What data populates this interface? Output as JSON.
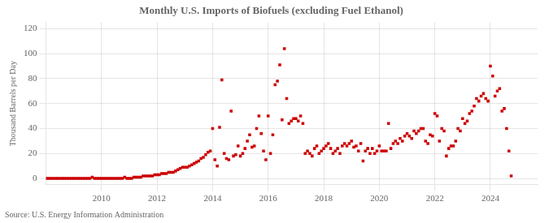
{
  "chart_data": {
    "type": "scatter",
    "title": "Monthly U.S. Imports of Biofuels (excluding Fuel Ethanol)",
    "y_label": "Thousand Barrels per Day",
    "annotation": "Source: U.S. Energy Information Administration",
    "color": "#cc0000",
    "marker": "square",
    "grid": true,
    "xlim": [
      2008.0,
      2025.7
    ],
    "xticks": [
      2010,
      2012,
      2014,
      2016,
      2018,
      2020,
      2022,
      2024
    ],
    "ylim": [
      -5,
      125
    ],
    "yticks": [
      0,
      20,
      40,
      60,
      80,
      100,
      120
    ],
    "x": [
      2008,
      2008.0833333333333,
      2008.1666666666667,
      2008.25,
      2008.3333333333333,
      2008.4166666666667,
      2008.5,
      2008.5833333333333,
      2008.6666666666667,
      2008.75,
      2008.8333333333333,
      2008.9166666666667,
      2009,
      2009.0833333333333,
      2009.1666666666667,
      2009.25,
      2009.3333333333333,
      2009.4166666666667,
      2009.5,
      2009.5833333333333,
      2009.6666666666667,
      2009.75,
      2009.8333333333333,
      2009.9166666666667,
      2010,
      2010.0833333333333,
      2010.1666666666667,
      2010.25,
      2010.3333333333333,
      2010.4166666666667,
      2010.5,
      2010.5833333333333,
      2010.6666666666667,
      2010.75,
      2010.8333333333333,
      2010.9166666666667,
      2011,
      2011.0833333333333,
      2011.1666666666667,
      2011.25,
      2011.3333333333333,
      2011.4166666666667,
      2011.5,
      2011.5833333333333,
      2011.6666666666667,
      2011.75,
      2011.8333333333333,
      2011.9166666666667,
      2012,
      2012.0833333333333,
      2012.1666666666667,
      2012.25,
      2012.3333333333333,
      2012.4166666666667,
      2012.5,
      2012.5833333333333,
      2012.6666666666667,
      2012.75,
      2012.8333333333333,
      2012.9166666666667,
      2013,
      2013.0833333333333,
      2013.1666666666667,
      2013.25,
      2013.3333333333333,
      2013.4166666666667,
      2013.5,
      2013.5833333333333,
      2013.6666666666667,
      2013.75,
      2013.8333333333333,
      2013.9166666666667,
      2014,
      2014.0833333333333,
      2014.1666666666667,
      2014.25,
      2014.3333333333333,
      2014.4166666666667,
      2014.5,
      2014.5833333333333,
      2014.6666666666667,
      2014.75,
      2014.8333333333333,
      2014.9166666666667,
      2015,
      2015.0833333333333,
      2015.1666666666667,
      2015.25,
      2015.3333333333333,
      2015.4166666666667,
      2015.5,
      2015.5833333333333,
      2015.6666666666667,
      2015.75,
      2015.8333333333333,
      2015.9166666666667,
      2016,
      2016.0833333333333,
      2016.1666666666667,
      2016.25,
      2016.3333333333333,
      2016.4166666666667,
      2016.5,
      2016.5833333333333,
      2016.6666666666667,
      2016.75,
      2016.8333333333333,
      2016.9166666666667,
      2017,
      2017.0833333333333,
      2017.1666666666667,
      2017.25,
      2017.3333333333333,
      2017.4166666666667,
      2017.5,
      2017.5833333333333,
      2017.6666666666667,
      2017.75,
      2017.8333333333333,
      2017.9166666666667,
      2018,
      2018.0833333333333,
      2018.1666666666667,
      2018.25,
      2018.3333333333333,
      2018.4166666666667,
      2018.5,
      2018.5833333333333,
      2018.6666666666667,
      2018.75,
      2018.8333333333333,
      2018.9166666666667,
      2019,
      2019.0833333333333,
      2019.1666666666667,
      2019.25,
      2019.3333333333333,
      2019.4166666666667,
      2019.5,
      2019.5833333333333,
      2019.6666666666667,
      2019.75,
      2019.8333333333333,
      2019.9166666666667,
      2020,
      2020.0833333333333,
      2020.1666666666667,
      2020.25,
      2020.3333333333333,
      2020.4166666666667,
      2020.5,
      2020.5833333333333,
      2020.6666666666667,
      2020.75,
      2020.8333333333333,
      2020.9166666666667,
      2021,
      2021.0833333333333,
      2021.1666666666667,
      2021.25,
      2021.3333333333333,
      2021.4166666666667,
      2021.5,
      2021.5833333333333,
      2021.6666666666667,
      2021.75,
      2021.8333333333333,
      2021.9166666666667,
      2022,
      2022.0833333333333,
      2022.1666666666667,
      2022.25,
      2022.3333333333333,
      2022.4166666666667,
      2022.5,
      2022.5833333333333,
      2022.6666666666667,
      2022.75,
      2022.8333333333333,
      2022.9166666666667,
      2023,
      2023.0833333333333,
      2023.1666666666667,
      2023.25,
      2023.3333333333333,
      2023.4166666666667,
      2023.5,
      2023.5833333333333,
      2023.6666666666667,
      2023.75,
      2023.8333333333333,
      2023.9166666666667,
      2024,
      2024.0833333333333,
      2024.1666666666667,
      2024.25,
      2024.3333333333333,
      2024.4166666666667,
      2024.5,
      2024.5833333333333,
      2024.6666666666667,
      2024.75
    ],
    "values": [
      0,
      0,
      0,
      0,
      0,
      0,
      0,
      0,
      0,
      0,
      0,
      0,
      0,
      0,
      0,
      0,
      0,
      0,
      0,
      0,
      1,
      0,
      0,
      0,
      0,
      0,
      0,
      0,
      0,
      0,
      0,
      0,
      0,
      0,
      1,
      0,
      0,
      0,
      1,
      1,
      1,
      1,
      2,
      2,
      2,
      2,
      2,
      3,
      3,
      3,
      4,
      4,
      4,
      5,
      5,
      5,
      6,
      7,
      8,
      9,
      9,
      9,
      10,
      11,
      12,
      13,
      14,
      16,
      17,
      19,
      21,
      22,
      40,
      15,
      10,
      41,
      79,
      20,
      16,
      15,
      54,
      18,
      19,
      26,
      18,
      20,
      24,
      30,
      35,
      25,
      26,
      40,
      50,
      36,
      22,
      15,
      50,
      20,
      35,
      75,
      78,
      91,
      47,
      104,
      64,
      44,
      46,
      48,
      48,
      46,
      50,
      44,
      20,
      22,
      20,
      18,
      24,
      26,
      20,
      22,
      24,
      26,
      28,
      24,
      20,
      22,
      24,
      20,
      26,
      28,
      26,
      28,
      30,
      25,
      26,
      22,
      28,
      14,
      22,
      24,
      20,
      24,
      20,
      22,
      26,
      22,
      22,
      22,
      44,
      24,
      28,
      30,
      28,
      32,
      30,
      34,
      36,
      34,
      32,
      38,
      36,
      38,
      40,
      40,
      30,
      28,
      35,
      34,
      52,
      50,
      30,
      40,
      38,
      18,
      24,
      26,
      26,
      30,
      40,
      38,
      48,
      44,
      46,
      52,
      54,
      58,
      64,
      62,
      66,
      68,
      64,
      62,
      90,
      82,
      66,
      70,
      72,
      54,
      56,
      40,
      22,
      2
    ]
  }
}
